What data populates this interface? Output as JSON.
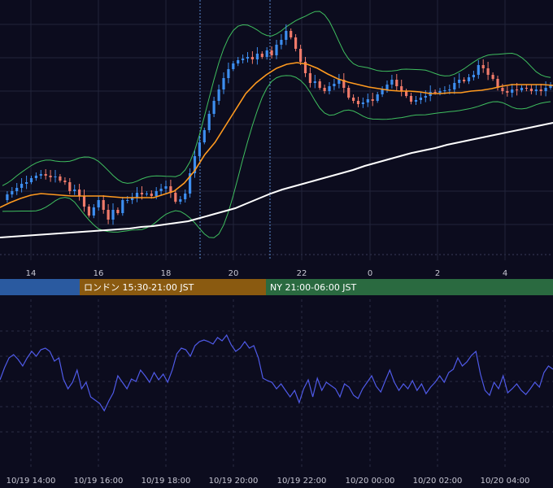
{
  "chart_data": [
    {
      "type": "candlestick",
      "title": "",
      "x_ticks": [
        "14",
        "16",
        "18",
        "20",
        "22",
        "0",
        "2",
        "4"
      ],
      "grid": true,
      "colors": {
        "up": "#3d8ef0",
        "down": "#ef7a6a",
        "bollinger": "#3fbf5f",
        "moving_average_fast": "#ff9a1f",
        "moving_average_slow": "#ffffff",
        "session_markers": "#5a8ad0"
      },
      "sessions": [
        {
          "label": "",
          "color": "#2a5aa0"
        },
        {
          "label": "ロンドン 15:30-21:00 JST",
          "color": "#8a5a10"
        },
        {
          "label": "NY 21:00-06:00 JST",
          "color": "#2a6a40"
        }
      ],
      "series": [
        {
          "name": "",
          "kind": "close_path",
          "values": [
            246,
            239,
            235,
            231,
            226,
            224,
            219,
            216,
            214,
            216,
            218,
            217,
            222,
            224,
            235,
            233,
            241,
            254,
            265,
            255,
            246,
            258,
            270,
            258,
            262,
            246,
            246,
            243,
            237,
            239,
            238,
            241,
            235,
            232,
            229,
            237,
            248,
            245,
            238,
            213,
            192,
            175,
            160,
            140,
            124,
            110,
            96,
            85,
            78,
            74,
            72,
            70,
            73,
            66,
            70,
            62,
            68,
            55,
            49,
            38,
            46,
            60,
            76,
            90,
            102,
            100,
            108,
            112,
            106,
            103,
            98,
            108,
            120,
            124,
            128,
            126,
            122,
            124,
            116,
            110,
            104,
            98,
            106,
            112,
            118,
            125,
            123,
            120,
            118,
            113,
            114,
            112,
            111,
            110,
            102,
            98,
            100,
            95,
            92,
            80,
            84,
            92,
            97,
            108,
            112,
            114,
            110,
            111,
            108,
            109,
            112,
            110,
            112,
            108,
            104
          ]
        },
        {
          "name": "",
          "kind": "moving_average_fast",
          "values": [
            255,
            249,
            244,
            240,
            238,
            239,
            240,
            241,
            241,
            241,
            241,
            242,
            243,
            243,
            243,
            243,
            239,
            235,
            225,
            210,
            190,
            175,
            155,
            135,
            115,
            102,
            92,
            84,
            79,
            77,
            79,
            84,
            91,
            97,
            101,
            104,
            107,
            109,
            111,
            112,
            112,
            113,
            115,
            115,
            114,
            114,
            112,
            111,
            109,
            106,
            104,
            104,
            104,
            104,
            105
          ]
        },
        {
          "name": "",
          "kind": "moving_average_slow",
          "values": [
            292,
            291,
            290,
            289,
            288,
            287,
            286,
            285,
            284,
            283,
            282,
            281,
            279,
            278,
            276,
            274,
            272,
            268,
            264,
            260,
            256,
            250,
            244,
            238,
            233,
            229,
            225,
            221,
            217,
            213,
            209,
            204,
            200,
            196,
            192,
            188,
            185,
            182,
            178,
            175,
            172,
            169,
            166,
            163,
            160,
            157,
            154,
            151
          ]
        }
      ]
    },
    {
      "type": "line",
      "title": "",
      "x_ticks": [
        "10/19 14:00",
        "10/19 16:00",
        "10/19 18:00",
        "10/19 20:00",
        "10/19 22:00",
        "10/20 00:00",
        "10/20 02:00",
        "10/20 04:00"
      ],
      "grid": true,
      "colors": {
        "line": "#4f5ae8"
      },
      "series": [
        {
          "name": "",
          "values": [
            467,
            452,
            440,
            436,
            442,
            450,
            440,
            432,
            438,
            430,
            428,
            432,
            444,
            440,
            466,
            478,
            470,
            455,
            478,
            470,
            488,
            492,
            496,
            505,
            493,
            483,
            462,
            470,
            478,
            466,
            469,
            455,
            462,
            470,
            458,
            467,
            460,
            470,
            455,
            435,
            428,
            430,
            438,
            425,
            420,
            418,
            420,
            423,
            415,
            419,
            412,
            424,
            432,
            428,
            420,
            428,
            425,
            440,
            465,
            468,
            470,
            478,
            472,
            480,
            488,
            480,
            495,
            478,
            467,
            488,
            465,
            480,
            470,
            474,
            478,
            488,
            472,
            476,
            486,
            490,
            478,
            470,
            462,
            475,
            482,
            468,
            455,
            470,
            480,
            472,
            478,
            468,
            480,
            472,
            484,
            476,
            470,
            462,
            470,
            458,
            454,
            440,
            450,
            445,
            437,
            432,
            460,
            480,
            486,
            470,
            478,
            462,
            483,
            478,
            472,
            480,
            485,
            478,
            470,
            476,
            458,
            450,
            454
          ]
        }
      ]
    }
  ]
}
